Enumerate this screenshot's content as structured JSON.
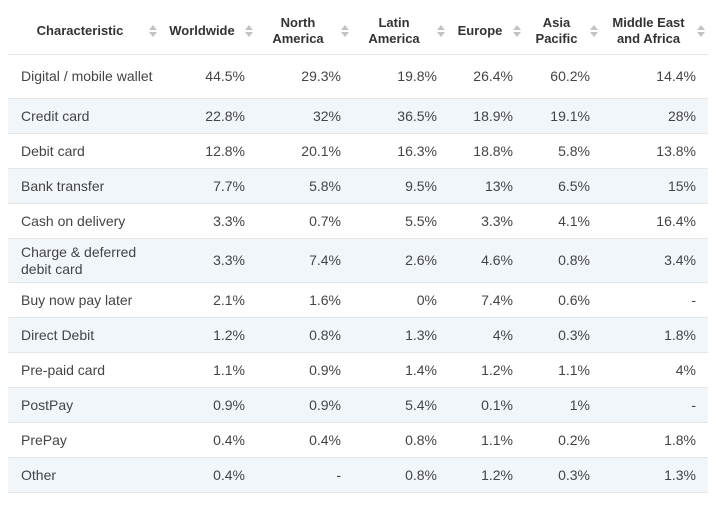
{
  "table": {
    "headers": [
      "Characteristic",
      "Worldwide",
      "North America",
      "Latin America",
      "Europe",
      "Asia Pacific",
      "Middle East and Africa"
    ],
    "rows": [
      {
        "label": "Digital / mobile wallet",
        "values": [
          "44.5%",
          "29.3%",
          "19.8%",
          "26.4%",
          "60.2%",
          "14.4%"
        ]
      },
      {
        "label": "Credit card",
        "values": [
          "22.8%",
          "32%",
          "36.5%",
          "18.9%",
          "19.1%",
          "28%"
        ]
      },
      {
        "label": "Debit card",
        "values": [
          "12.8%",
          "20.1%",
          "16.3%",
          "18.8%",
          "5.8%",
          "13.8%"
        ]
      },
      {
        "label": "Bank transfer",
        "values": [
          "7.7%",
          "5.8%",
          "9.5%",
          "13%",
          "6.5%",
          "15%"
        ]
      },
      {
        "label": "Cash on delivery",
        "values": [
          "3.3%",
          "0.7%",
          "5.5%",
          "3.3%",
          "4.1%",
          "16.4%"
        ]
      },
      {
        "label": "Charge & deferred debit card",
        "values": [
          "3.3%",
          "7.4%",
          "2.6%",
          "4.6%",
          "0.8%",
          "3.4%"
        ]
      },
      {
        "label": "Buy now pay later",
        "values": [
          "2.1%",
          "1.6%",
          "0%",
          "7.4%",
          "0.6%",
          "-"
        ]
      },
      {
        "label": "Direct Debit",
        "values": [
          "1.2%",
          "0.8%",
          "1.3%",
          "4%",
          "0.3%",
          "1.8%"
        ]
      },
      {
        "label": "Pre-paid card",
        "values": [
          "1.1%",
          "0.9%",
          "1.4%",
          "1.2%",
          "1.1%",
          "4%"
        ]
      },
      {
        "label": "PostPay",
        "values": [
          "0.9%",
          "0.9%",
          "5.4%",
          "0.1%",
          "1%",
          "-"
        ]
      },
      {
        "label": "PrePay",
        "values": [
          "0.4%",
          "0.4%",
          "0.8%",
          "1.1%",
          "0.2%",
          "1.8%"
        ]
      },
      {
        "label": "Other",
        "values": [
          "0.4%",
          "-",
          "0.8%",
          "1.2%",
          "0.3%",
          "1.3%"
        ]
      }
    ]
  },
  "icons": {
    "sort": "sort-arrows-icon"
  },
  "colors": {
    "stripe": "#f1f6fb",
    "border": "#e6e6e6",
    "text": "#444444"
  }
}
